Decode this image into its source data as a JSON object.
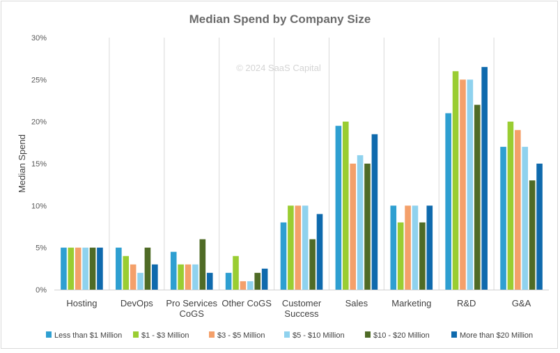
{
  "chart_data": {
    "type": "bar",
    "title": "Median Spend by Company Size",
    "watermark": "© 2024 SaaS Capital",
    "xlabel": "",
    "ylabel": "Median Spend",
    "ylim": [
      0,
      30
    ],
    "yticks": [
      0,
      5,
      10,
      15,
      20,
      25,
      30
    ],
    "ytick_labels": [
      "0%",
      "5%",
      "10%",
      "15%",
      "20%",
      "25%",
      "30%"
    ],
    "grid": "vertical separators between categories",
    "legend_position": "bottom",
    "categories": [
      [
        "Hosting"
      ],
      [
        "DevOps"
      ],
      [
        "Pro Services",
        "CoGS"
      ],
      [
        "Other CoGS"
      ],
      [
        "Customer",
        "Success"
      ],
      [
        "Sales"
      ],
      [
        "Marketing"
      ],
      [
        "R&D"
      ],
      [
        "G&A"
      ]
    ],
    "series": [
      {
        "name": "Less than $1 Million",
        "color": "#2e9fd1",
        "values": [
          5,
          5,
          4.5,
          2,
          8,
          19.5,
          10,
          21,
          17
        ]
      },
      {
        "name": "$1 - $3 Million",
        "color": "#9acd32",
        "values": [
          5,
          4,
          3,
          4,
          10,
          20,
          8,
          26,
          20
        ]
      },
      {
        "name": "$3 - $5 Million",
        "color": "#f4a06a",
        "values": [
          5,
          3,
          3,
          1,
          10,
          15,
          10,
          25,
          19
        ]
      },
      {
        "name": "$5 - $10 Million",
        "color": "#8fd2ee",
        "values": [
          5,
          2,
          3,
          1,
          10,
          16,
          10,
          25,
          17
        ]
      },
      {
        "name": "$10 - $20 Million",
        "color": "#4f6b26",
        "values": [
          5,
          5,
          6,
          2,
          6,
          15,
          8,
          22,
          13
        ]
      },
      {
        "name": "More than $20 Million",
        "color": "#0f6aad",
        "values": [
          5,
          3,
          2,
          2.5,
          9,
          18.5,
          10,
          26.5,
          15
        ]
      }
    ]
  }
}
